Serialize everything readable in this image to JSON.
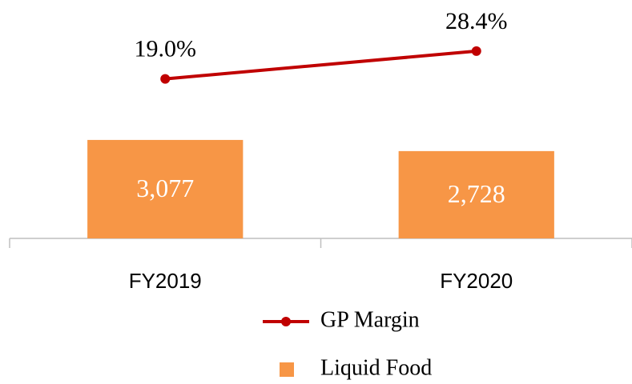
{
  "chart_data": {
    "type": "bar+line",
    "categories": [
      "FY2019",
      "FY2020"
    ],
    "series": [
      {
        "name": "Liquid Food",
        "type": "bar",
        "color": "#F79646",
        "values": [
          3077,
          2728
        ],
        "value_labels": [
          "3,077",
          "2,728"
        ]
      },
      {
        "name": "GP Margin",
        "type": "line",
        "axis": "y2",
        "color": "#C00000",
        "values": [
          19.0,
          28.4
        ],
        "value_labels": [
          "19.0%",
          "28.4%"
        ]
      }
    ],
    "ylim": [
      0,
      6000
    ],
    "y2lim": [
      -35,
      30
    ],
    "legend": "bottom"
  }
}
